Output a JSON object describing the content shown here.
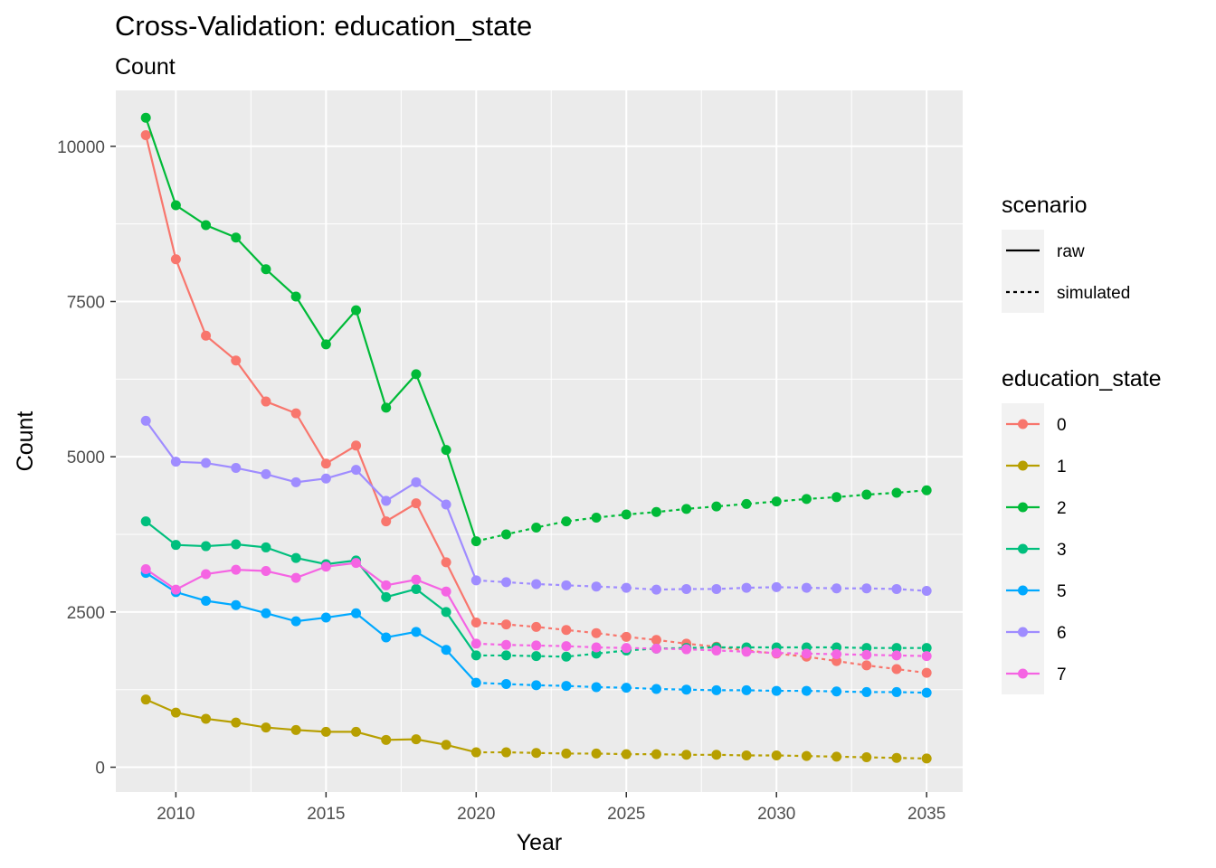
{
  "chart_data": {
    "type": "line",
    "title": "Cross-Validation: education_state",
    "subtitle": "Count",
    "xlabel": "Year",
    "ylabel": "Count",
    "xlim": [
      2008,
      2036.2
    ],
    "ylim": [
      -400,
      10900
    ],
    "xticks": [
      2010,
      2015,
      2020,
      2025,
      2030,
      2035
    ],
    "yticks": [
      0,
      2500,
      5000,
      7500,
      10000
    ],
    "grid": true,
    "panel_background": "#ebebeb",
    "legend_position": "right",
    "legend_scenario": {
      "title": "scenario",
      "items": [
        {
          "label": "raw",
          "linetype": "solid"
        },
        {
          "label": "simulated",
          "linetype": "dotted"
        }
      ]
    },
    "legend_series_title": "education_state",
    "raw_years": [
      2009,
      2010,
      2011,
      2012,
      2013,
      2014,
      2015,
      2016,
      2017,
      2018,
      2019,
      2020
    ],
    "sim_years": [
      2020,
      2021,
      2022,
      2023,
      2024,
      2025,
      2026,
      2027,
      2028,
      2029,
      2030,
      2031,
      2032,
      2033,
      2034,
      2035
    ],
    "series": [
      {
        "name": "0",
        "color": "#F8766D",
        "raw": [
          10180,
          8180,
          6950,
          6550,
          5890,
          5700,
          4890,
          5180,
          3960,
          4250,
          3300,
          2330
        ],
        "simulated": [
          2330,
          2300,
          2260,
          2210,
          2160,
          2100,
          2050,
          1990,
          1940,
          1880,
          1830,
          1780,
          1710,
          1640,
          1580,
          1520
        ]
      },
      {
        "name": "1",
        "color": "#B79F00",
        "raw": [
          1090,
          880,
          780,
          720,
          640,
          600,
          570,
          570,
          440,
          450,
          360,
          240
        ],
        "simulated": [
          240,
          240,
          230,
          220,
          220,
          210,
          210,
          200,
          200,
          190,
          190,
          180,
          170,
          160,
          150,
          140
        ]
      },
      {
        "name": "2",
        "color": "#00BA38",
        "raw": [
          10460,
          9050,
          8730,
          8530,
          8020,
          7580,
          6810,
          7360,
          5790,
          6330,
          5110,
          3640
        ],
        "simulated": [
          3640,
          3750,
          3860,
          3960,
          4020,
          4070,
          4110,
          4160,
          4200,
          4240,
          4280,
          4320,
          4350,
          4390,
          4420,
          4460
        ]
      },
      {
        "name": "3",
        "color": "#00BF7D",
        "raw": [
          3960,
          3580,
          3560,
          3590,
          3540,
          3370,
          3270,
          3330,
          2740,
          2870,
          2500,
          1800
        ],
        "simulated": [
          1800,
          1800,
          1790,
          1780,
          1830,
          1880,
          1910,
          1920,
          1930,
          1930,
          1930,
          1930,
          1930,
          1920,
          1920,
          1920
        ]
      },
      {
        "name": "5",
        "color": "#00A9FF",
        "raw": [
          3130,
          2820,
          2680,
          2610,
          2480,
          2350,
          2410,
          2480,
          2090,
          2180,
          1890,
          1360
        ],
        "simulated": [
          1360,
          1340,
          1320,
          1310,
          1290,
          1280,
          1260,
          1250,
          1240,
          1240,
          1230,
          1230,
          1220,
          1210,
          1210,
          1200
        ]
      },
      {
        "name": "6",
        "color": "#9F8CFF",
        "raw": [
          5580,
          4920,
          4900,
          4820,
          4720,
          4590,
          4650,
          4790,
          4290,
          4590,
          4230,
          3010
        ],
        "simulated": [
          3010,
          2980,
          2950,
          2930,
          2910,
          2890,
          2860,
          2870,
          2870,
          2890,
          2900,
          2890,
          2880,
          2880,
          2870,
          2840
        ]
      },
      {
        "name": "7",
        "color": "#F564E3",
        "raw": [
          3190,
          2860,
          3110,
          3180,
          3160,
          3050,
          3230,
          3290,
          2930,
          3020,
          2830,
          1990
        ],
        "simulated": [
          1990,
          1970,
          1960,
          1950,
          1930,
          1920,
          1910,
          1900,
          1880,
          1860,
          1840,
          1830,
          1820,
          1810,
          1800,
          1790
        ]
      }
    ]
  }
}
